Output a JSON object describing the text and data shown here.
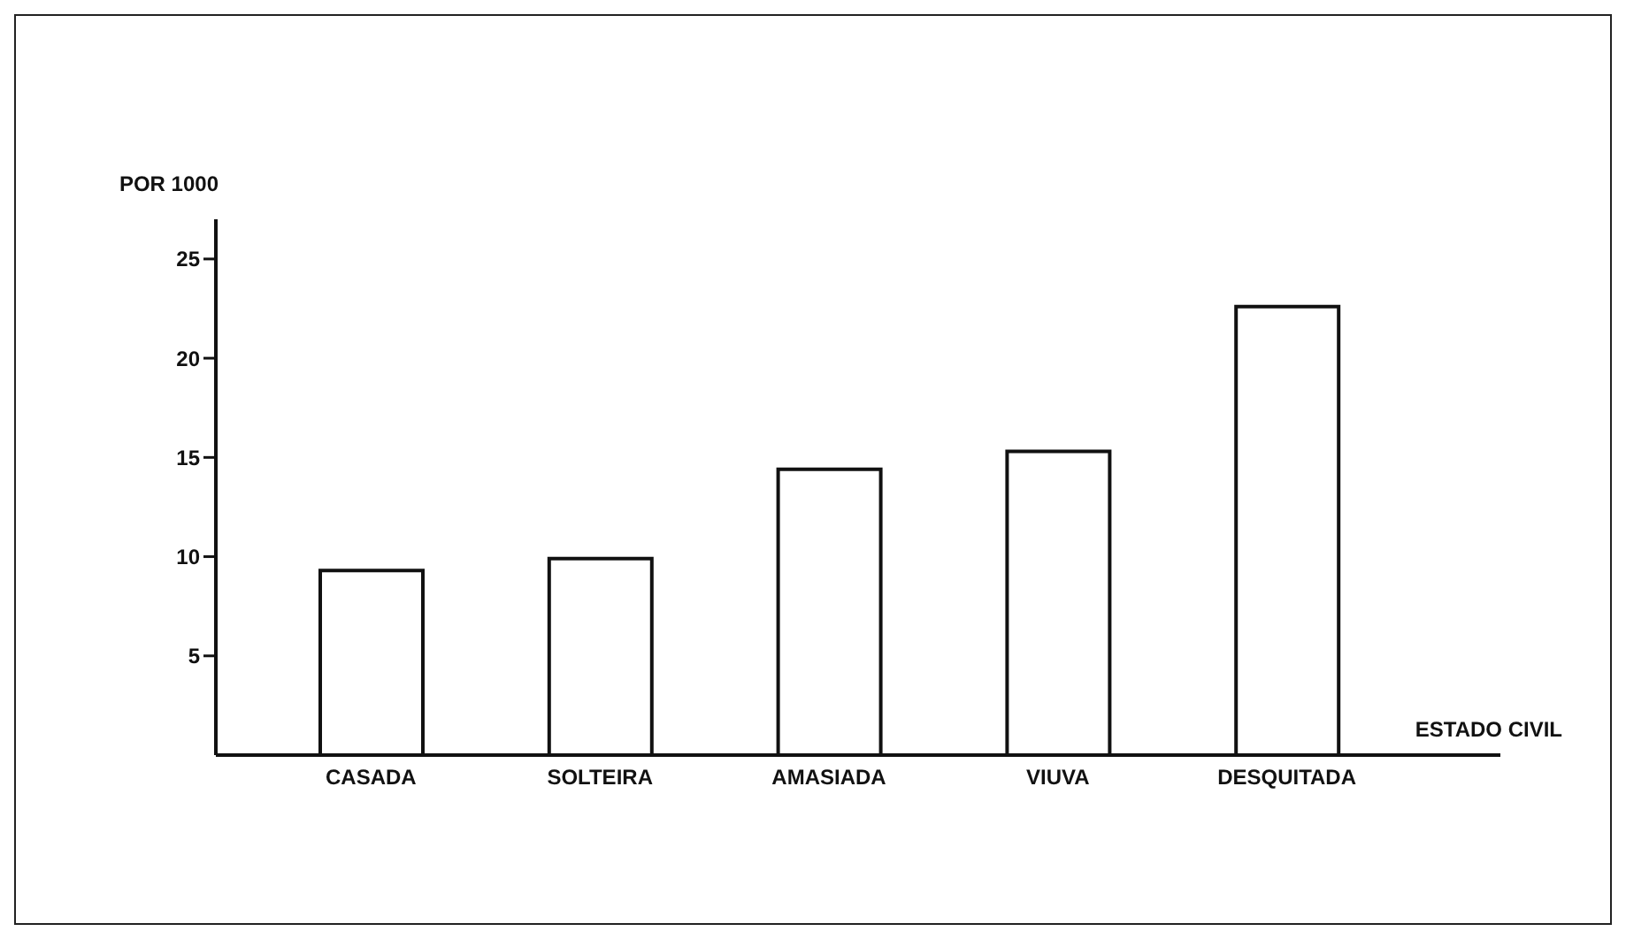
{
  "chart_data": {
    "type": "bar",
    "ylabel": "POR 1000",
    "xlabel": "ESTADO CIVIL",
    "categories": [
      "CASADA",
      "SOLTEIRA",
      "AMASIADA",
      "VIUVA",
      "DESQUITADA"
    ],
    "values": [
      9.3,
      9.9,
      14.4,
      15.3,
      22.6
    ],
    "color": "#ffffff",
    "ylim": [
      0,
      27
    ],
    "yticks": [
      5,
      10,
      15,
      20,
      25
    ]
  }
}
